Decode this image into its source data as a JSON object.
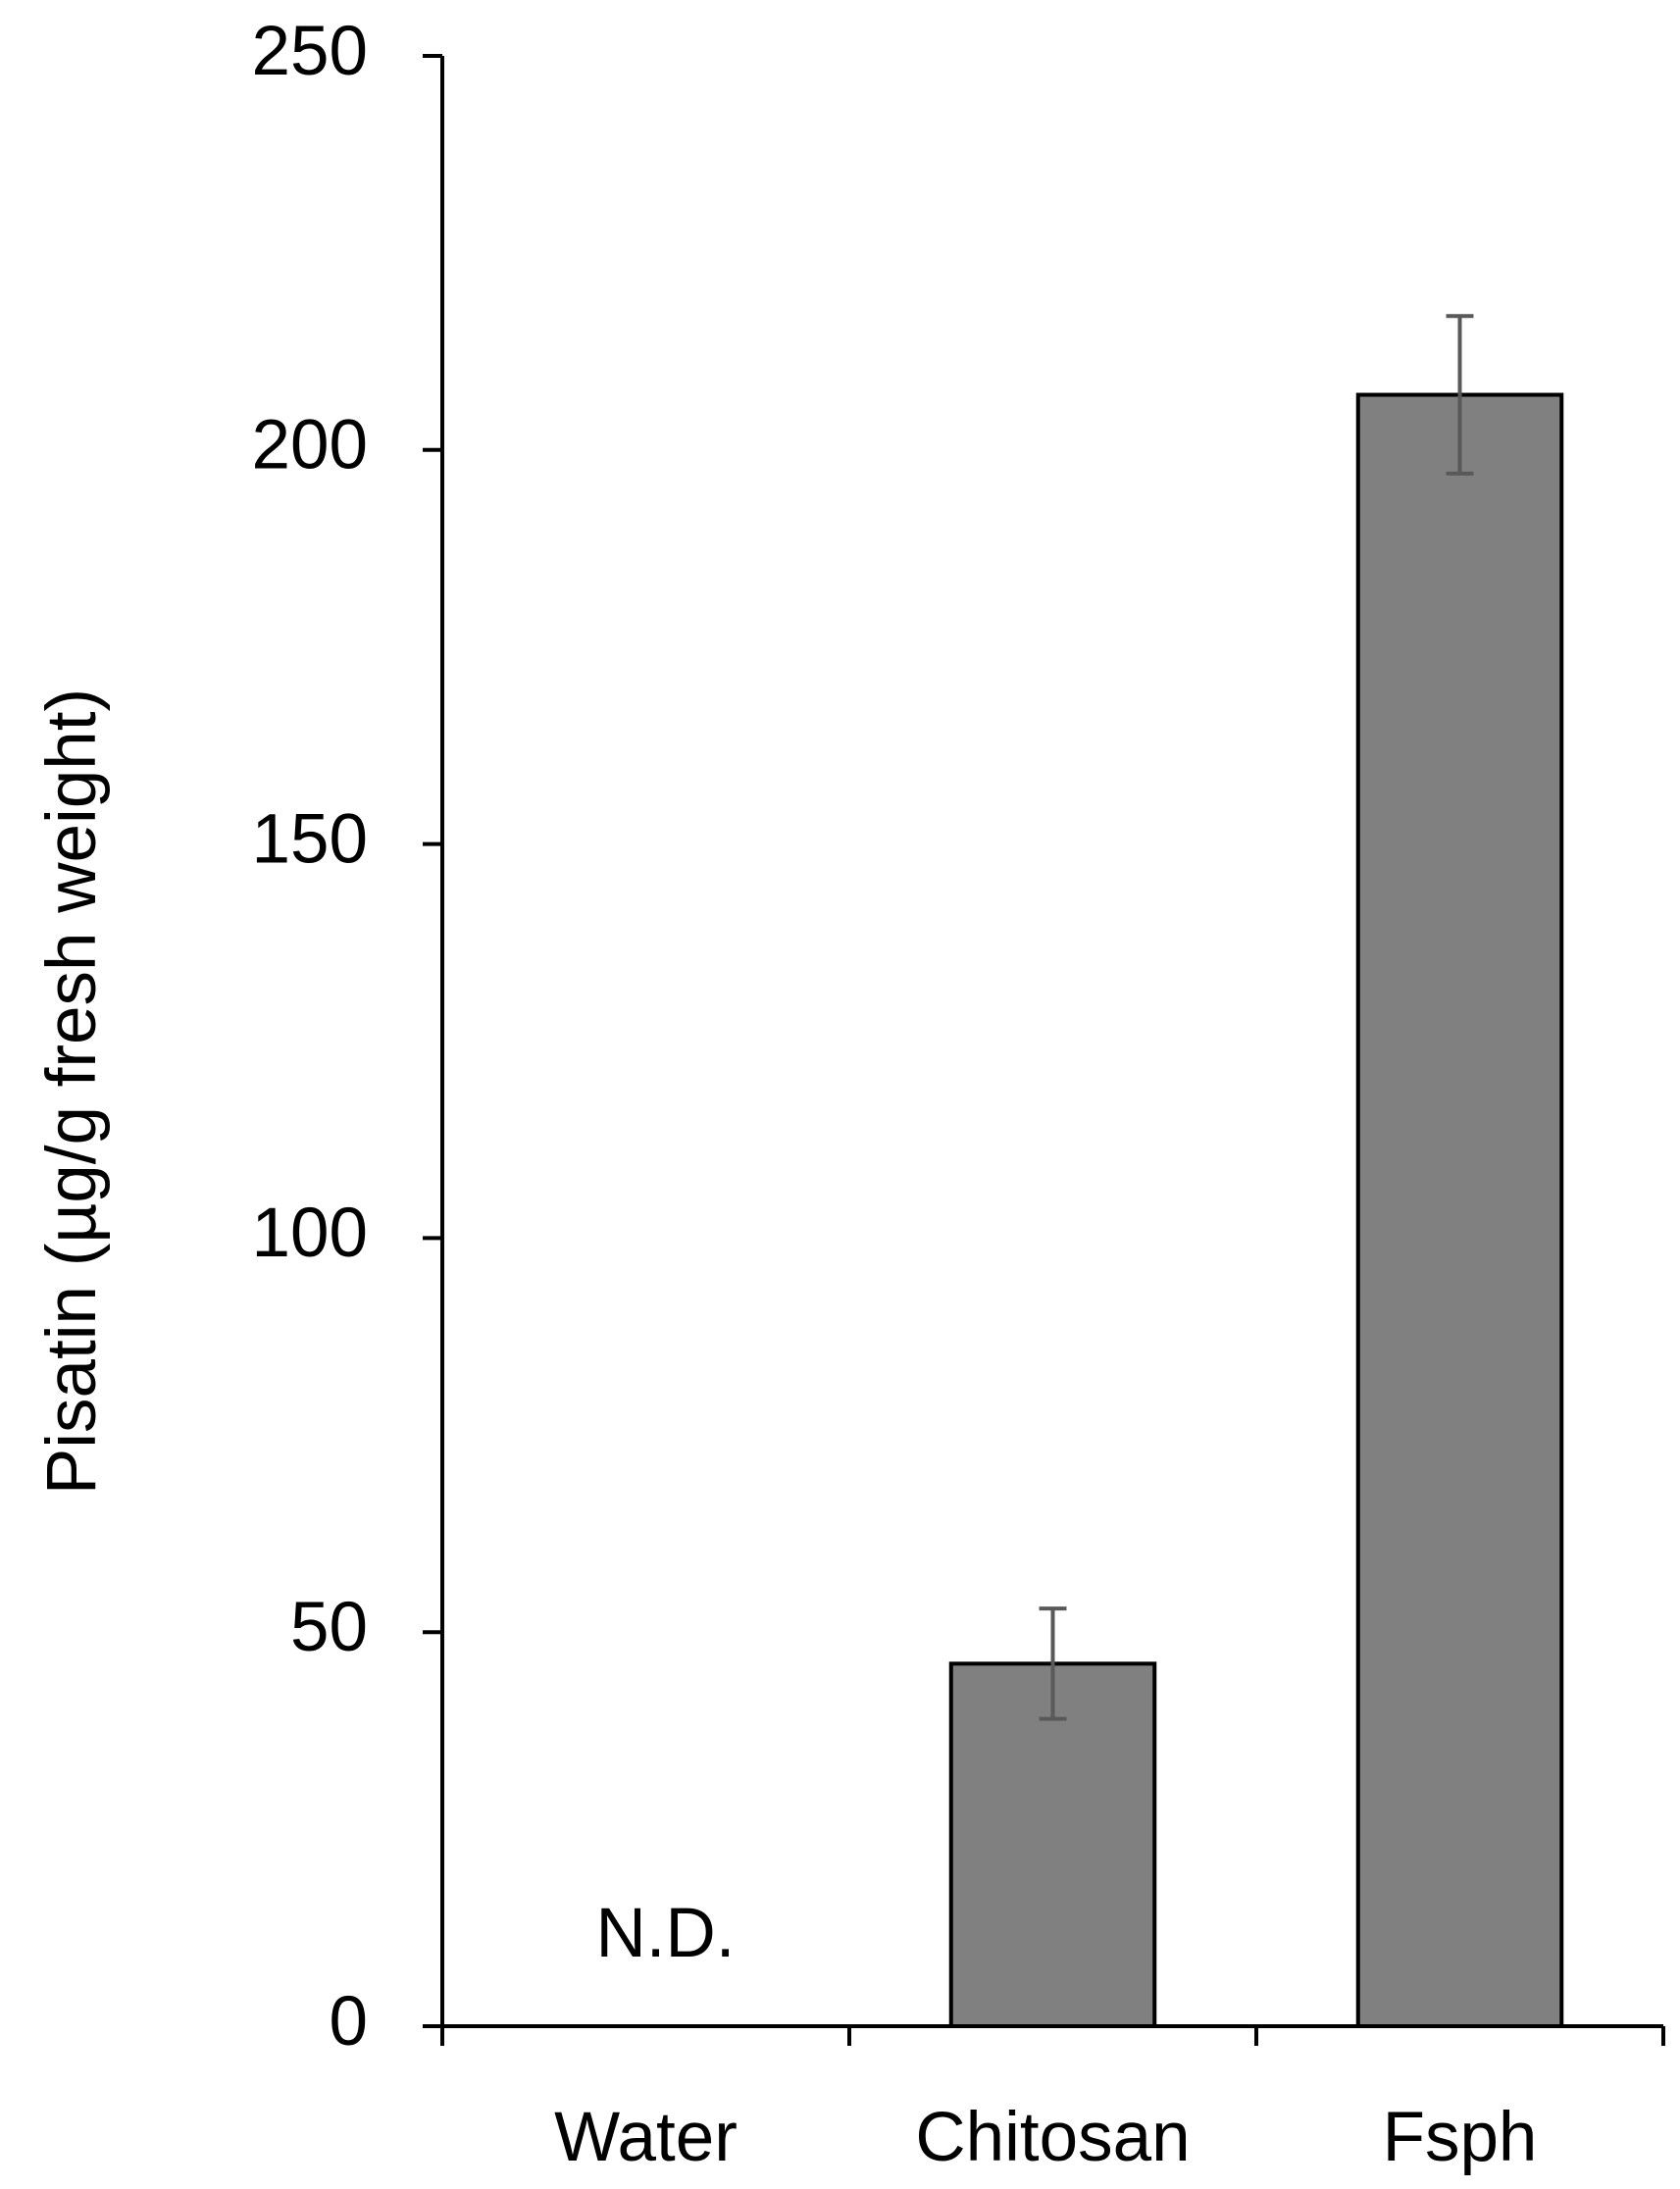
{
  "chart_data": {
    "type": "bar",
    "y_label": "Pisatin (µg/g fresh weight)",
    "categories": [
      "Water",
      "Chitosan",
      "Fsph"
    ],
    "values": [
      null,
      46,
      207
    ],
    "errors": [
      null,
      7,
      10
    ],
    "value_labels": [
      "N.D.",
      null,
      null
    ],
    "color": "#808080",
    "ylim": [
      0,
      250
    ],
    "yticks": [
      0,
      50,
      100,
      150,
      200,
      250
    ],
    "grid": false
  }
}
